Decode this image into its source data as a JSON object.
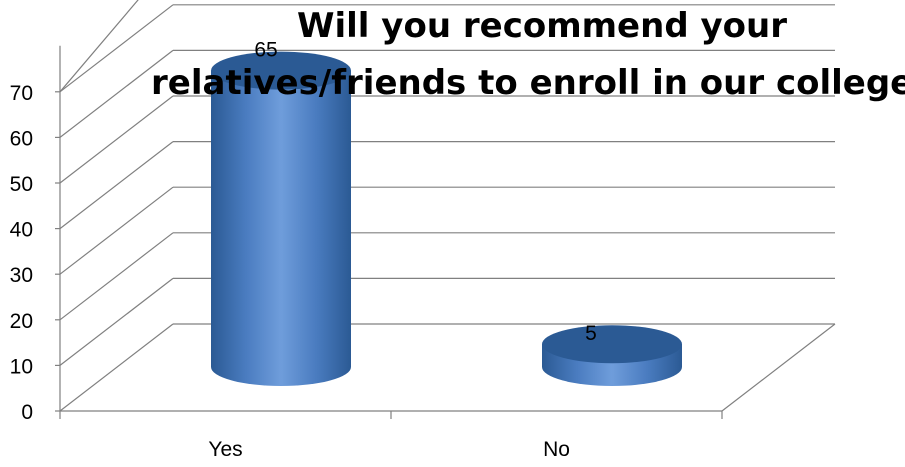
{
  "chart_data": {
    "type": "bar",
    "style": "3d-cylinder",
    "title_lines": [
      "Will you recommend your",
      "relatives/friends to enroll in our college?"
    ],
    "categories": [
      "Yes",
      "No"
    ],
    "values": [
      65,
      5
    ],
    "data_labels": [
      "65",
      "5"
    ],
    "y_ticks": [
      "0",
      "10",
      "20",
      "30",
      "40",
      "50",
      "60",
      "70"
    ],
    "ylim": [
      0,
      70
    ],
    "grid": true,
    "legend": "none",
    "colors": {
      "bar": "#4f81bd",
      "bar_dark": "#2b5a94",
      "bar_light": "#8cb3e6",
      "grid": "#808080"
    }
  }
}
